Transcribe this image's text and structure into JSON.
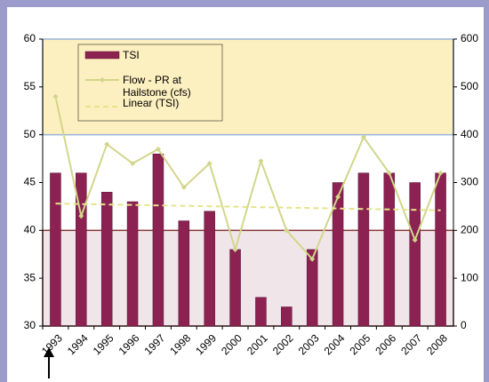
{
  "chart_data": {
    "type": "bar",
    "categories": [
      "1993",
      "1994",
      "1995",
      "1996",
      "1997",
      "1998",
      "1999",
      "2000",
      "2001",
      "2002",
      "2003",
      "2004",
      "2005",
      "2006",
      "2007",
      "2008"
    ],
    "series": [
      {
        "name": "TSI",
        "type": "bar",
        "color": "#8b2252",
        "values": [
          46,
          46,
          44,
          43,
          48,
          41,
          42,
          38,
          33,
          32,
          38,
          45,
          46,
          46,
          45,
          46
        ]
      },
      {
        "name": "Flow - PR at Hailstone (cfs)",
        "type": "line",
        "axis": "y2",
        "color": "#d2d68a",
        "values": [
          480,
          230,
          380,
          340,
          370,
          290,
          340,
          160,
          345,
          200,
          140,
          270,
          395,
          320,
          180,
          320
        ]
      },
      {
        "name": "Linear (TSI)",
        "type": "line",
        "dashed": true,
        "color": "#e4e48c",
        "values": [
          42.8,
          null,
          null,
          null,
          null,
          null,
          null,
          null,
          null,
          null,
          null,
          null,
          null,
          null,
          null,
          42.1
        ]
      }
    ],
    "bands": [
      {
        "range": [
          50,
          60
        ],
        "fill": "#fcefc0",
        "stroke": "#9ab4dc"
      },
      {
        "range": [
          30,
          40
        ],
        "fill": "#f0e6ea",
        "stroke": "#8b3a3a"
      }
    ],
    "ylim": [
      30,
      60
    ],
    "yticks": [
      30,
      35,
      40,
      45,
      50,
      55,
      60
    ],
    "y2lim": [
      0,
      600
    ],
    "y2ticks": [
      0,
      100,
      200,
      300,
      400,
      500,
      600
    ]
  }
}
